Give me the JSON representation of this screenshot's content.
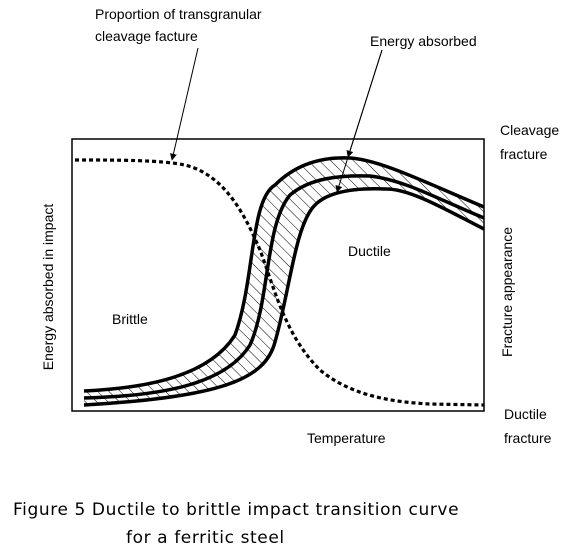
{
  "annotations": {
    "cleavage_proportion_line1": "Proportion of transgranular",
    "cleavage_proportion_line2": "cleavage facture",
    "energy_absorbed": "Energy absorbed"
  },
  "regions": {
    "brittle": "Brittle",
    "ductile": "Ductile"
  },
  "axes": {
    "left_label": "Energy absorbed in impact",
    "right_label": "Fracture appearance",
    "bottom_label": "Temperature",
    "right_top_line1": "Cleavage",
    "right_top_line2": "fracture",
    "right_bottom_line1": "Ductile",
    "right_bottom_line2": "fracture"
  },
  "caption": {
    "line1": "Figure 5  Ductile to brittle impact transition curve",
    "line2": "for a ferritic steel"
  },
  "colors": {
    "ink": "#000000",
    "background": "#ffffff"
  }
}
